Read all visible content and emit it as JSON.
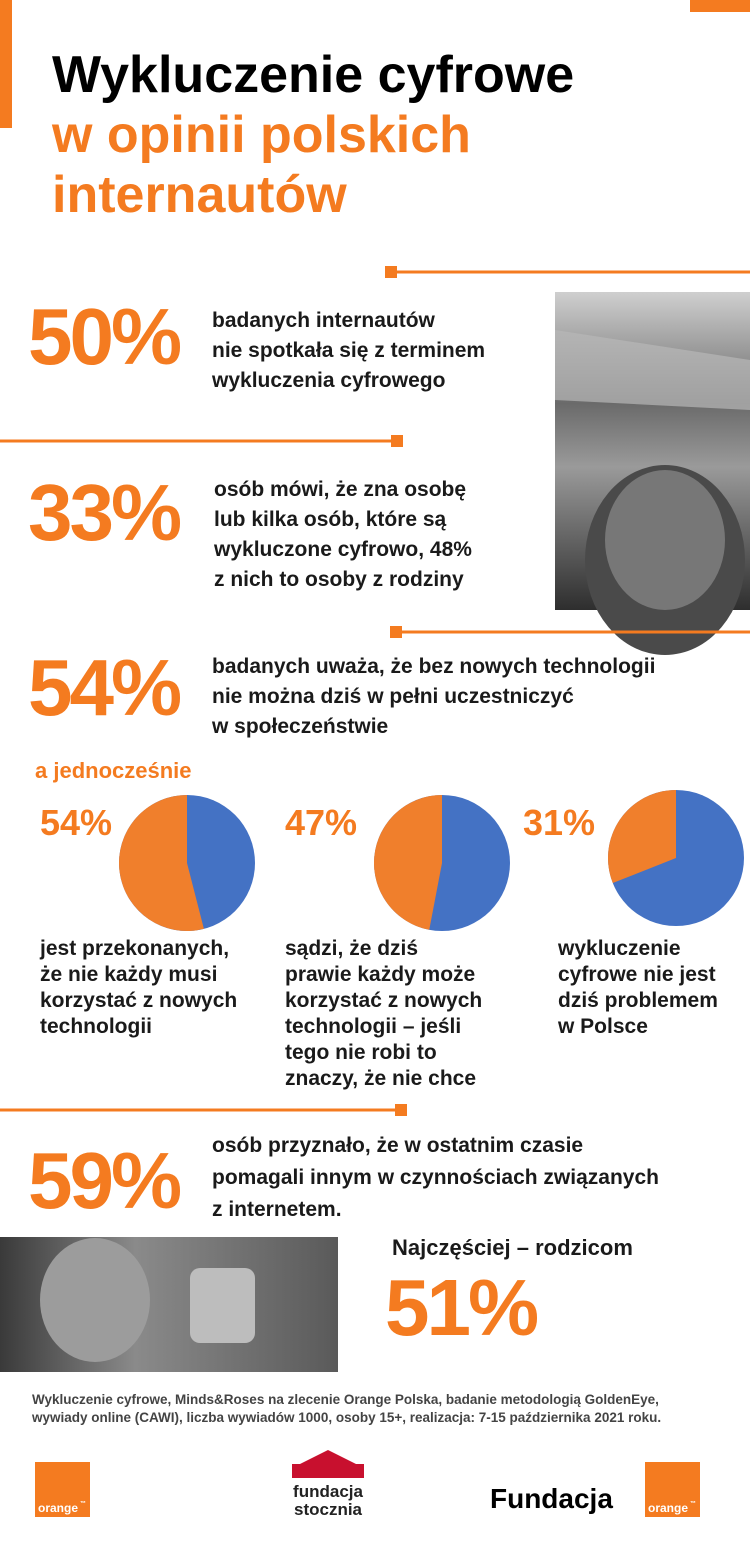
{
  "header": {
    "title": [
      "Wykluczenie cyfrowe",
      "w opinii polskich",
      "internautów"
    ]
  },
  "stats": [
    {
      "value": "50%",
      "text": [
        "badanych internautów",
        "nie spotkała się z terminem",
        "wykluczenia cyfrowego"
      ]
    },
    {
      "value": "33%",
      "text": [
        "osób mówi, że zna osobę",
        "lub kilka osób, które są",
        "wykluczone cyfrowo, 48%",
        "z nich to osoby z rodziny"
      ]
    },
    {
      "value": "54%",
      "text": [
        "badanych uważa, że bez nowych technologii",
        "nie można dziś w pełni uczestniczyć",
        "w społeczeństwie"
      ]
    }
  ],
  "subheading": "a jednocześnie",
  "pies": {
    "type": "pie",
    "colors": {
      "share": "#f07f2c",
      "rest": "#4472c4"
    },
    "items": [
      {
        "value": 54,
        "value_label": "54%",
        "text": [
          "jest przekonanych,",
          "że nie każdy musi",
          "korzystać z nowych",
          "technologii"
        ]
      },
      {
        "value": 47,
        "value_label": "47%",
        "text": [
          "sądzi, że dziś",
          "prawie każdy może",
          "korzystać z nowych",
          "technologii – jeśli",
          "tego nie robi to",
          "znaczy, że nie chce"
        ]
      },
      {
        "value": 31,
        "value_label": "31%",
        "text": [
          "wykluczenie",
          "cyfrowe nie jest",
          "dziś problemem",
          "w Polsce"
        ]
      }
    ]
  },
  "stat4": {
    "value": "59%",
    "text": [
      "osób przyznało,  że w ostatnim czasie",
      "pomagali innym w czynnościach związanych",
      "z internetem."
    ]
  },
  "highlight": {
    "label": "Najczęściej – rodzicom",
    "value": "51%"
  },
  "footnote": [
    "Wykluczenie cyfrowe, Minds&Roses na zlecenie Orange Polska, badanie metodologią GoldenEye,",
    "wywiady online (CAWI), liczba wywiadów 1000, osoby 15+, realizacja: 7-15 października 2021 roku."
  ],
  "logos": {
    "orange": "orange",
    "tm": "™",
    "stocznia": [
      "fundacja",
      "stocznia"
    ],
    "fundacja": "Fundacja"
  }
}
